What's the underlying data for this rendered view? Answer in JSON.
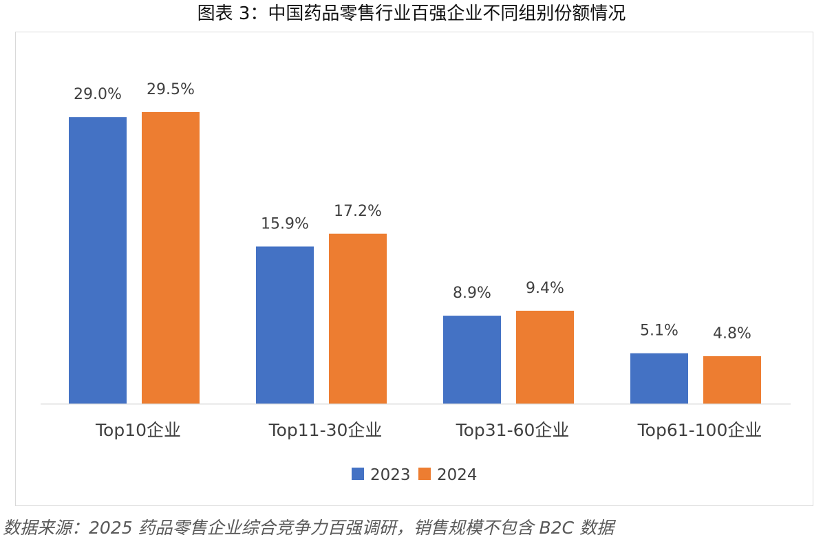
{
  "title": "图表 3：中国药品零售行业百强企业不同组别份额情况",
  "source_note": "数据来源：2025 药品零售企业综合竞争力百强调研，销售规模不包含 B2C 数据",
  "colors": {
    "series_2023": "#4472C4",
    "series_2024": "#ED7D31",
    "axis": "#d9d9d9",
    "text": "#404040"
  },
  "chart_data": {
    "type": "bar",
    "categories": [
      "Top10企业",
      "Top11-30企业",
      "Top31-60企业",
      "Top61-100企业"
    ],
    "series": [
      {
        "name": "2023",
        "values": [
          29.0,
          15.9,
          8.9,
          5.1
        ],
        "labels": [
          "29.0%",
          "15.9%",
          "8.9%",
          "5.1%"
        ]
      },
      {
        "name": "2024",
        "values": [
          29.5,
          17.2,
          9.4,
          4.8
        ],
        "labels": [
          "29.5%",
          "17.2%",
          "9.4%",
          "4.8%"
        ]
      }
    ],
    "unit": "%",
    "ylim": [
      0,
      29.5
    ],
    "grid": false,
    "legend": "bottom"
  }
}
